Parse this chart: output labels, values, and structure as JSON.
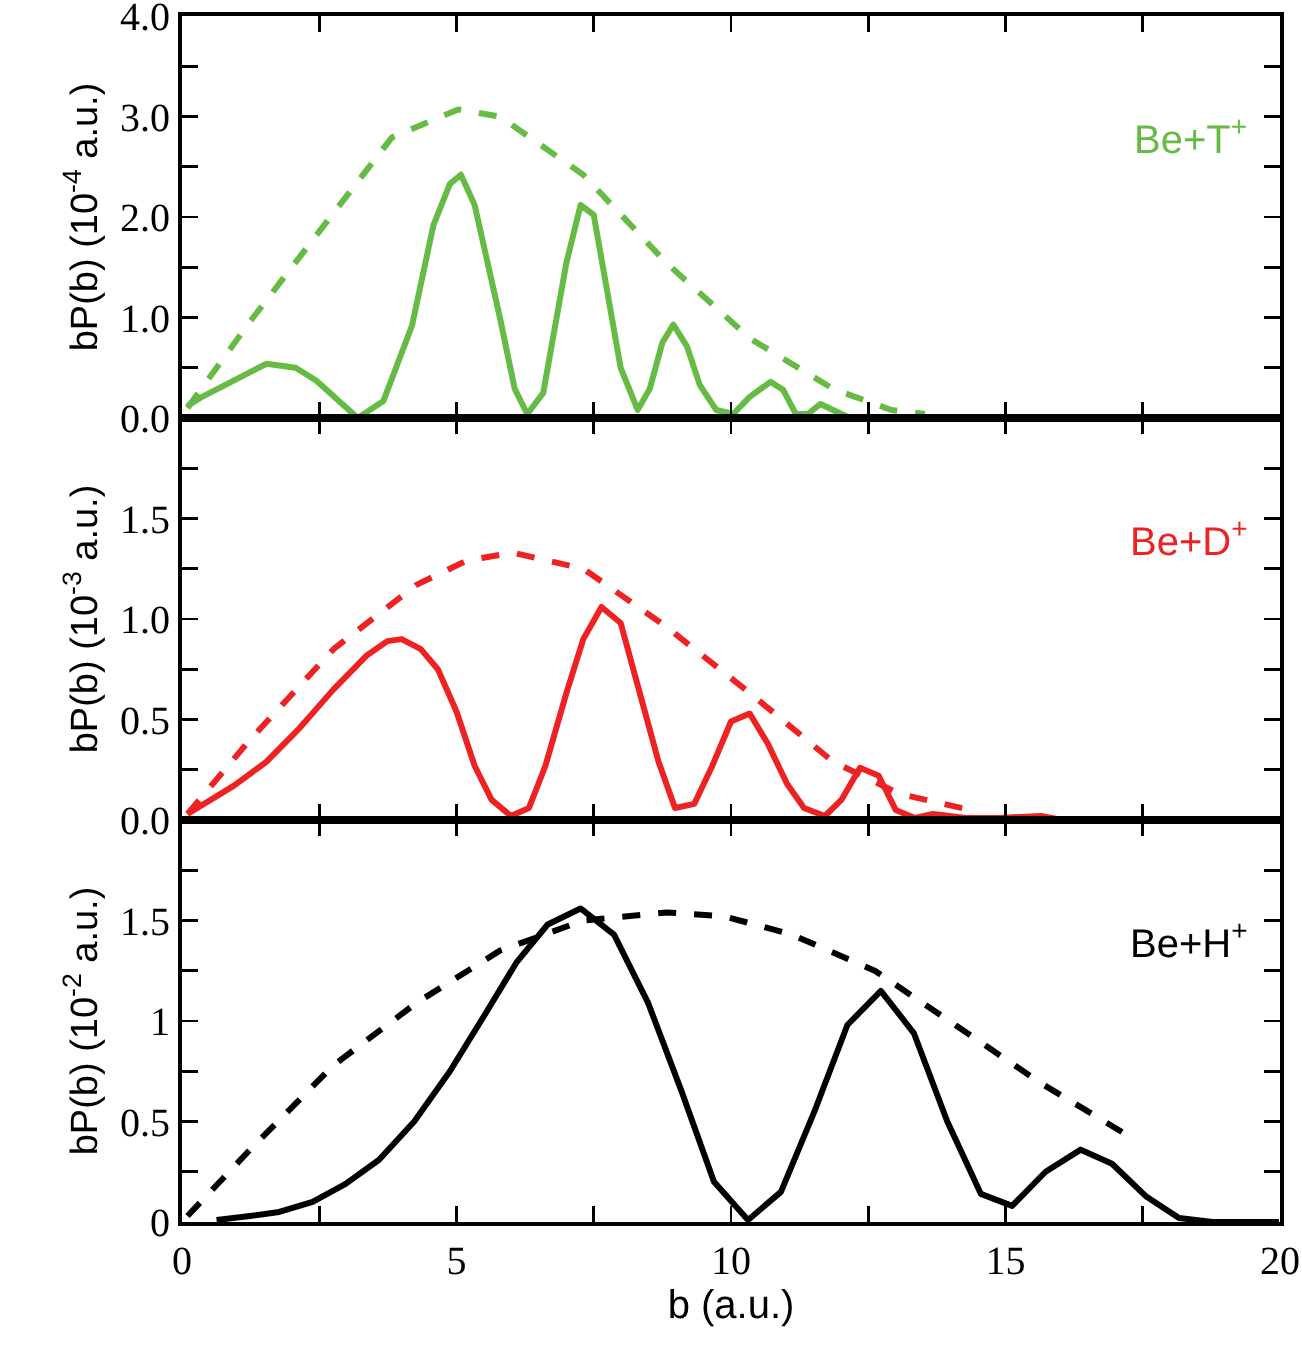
{
  "chart_data": [
    {
      "type": "line",
      "ylabel": "bP(b) (10$^{-4}$ a.u.)",
      "annotations": [
        "Be+T$^{+}$"
      ],
      "xlim": [
        0,
        20
      ],
      "xticks": [
        0,
        {
          "value": 2.5,
          "label": null
        },
        5,
        {
          "value": 7.5,
          "label": null
        },
        10,
        {
          "value": 12.5,
          "label": null
        },
        15,
        {
          "value": 17.5,
          "label": null
        },
        20
      ],
      "ylim": [
        0,
        4
      ],
      "yticks": [
        {
          "value": 0,
          "label": "0.0"
        },
        {
          "value": 0.5,
          "label": null
        },
        {
          "value": 1,
          "label": "1.0"
        },
        {
          "value": 1.5,
          "label": null
        },
        {
          "value": 2,
          "label": "2.0"
        },
        {
          "value": 2.5,
          "label": null
        },
        {
          "value": 3,
          "label": "3.0"
        },
        {
          "value": 3.5,
          "label": null
        },
        {
          "value": 4,
          "label": "4.0"
        }
      ],
      "tick_labels": "y",
      "grid": false,
      "marker": "none",
      "series": [
        {
          "color": "#66bb44",
          "line_style": "solid",
          "x": [
            0.1,
            0.33,
            1.54,
            2.07,
            2.45,
            3.2,
            3.67,
            4.19,
            4.58,
            4.88,
            5.08,
            5.33,
            5.79,
            6.06,
            6.29,
            6.58,
            7.0,
            7.26,
            7.5,
            7.99,
            8.3,
            8.52,
            8.75,
            8.95,
            9.2,
            9.43,
            9.73,
            10.04,
            10.34,
            10.72,
            10.95,
            11.18,
            11.4,
            11.63,
            11.86,
            12.17
          ],
          "values": [
            0.12,
            0.2,
            0.54,
            0.5,
            0.37,
            0,
            0.17,
            0.92,
            1.92,
            2.33,
            2.42,
            2.12,
            1.0,
            0.29,
            0.04,
            0.25,
            1.54,
            2.12,
            2.02,
            0.5,
            0.08,
            0.29,
            0.75,
            0.93,
            0.71,
            0.33,
            0.08,
            0.04,
            0.21,
            0.36,
            0.28,
            0.04,
            0.04,
            0.14,
            0.08,
            0.0
          ]
        },
        {
          "color": "#66bb44",
          "line_style": "dashed",
          "x": [
            0.1,
            1.24,
            2.76,
            3.82,
            5.03,
            5.79,
            7.31,
            8.83,
            10.35,
            11.86,
            12.92,
            13.53
          ],
          "values": [
            0.1,
            0.96,
            2.04,
            2.79,
            3.07,
            3.0,
            2.42,
            1.54,
            0.79,
            0.29,
            0.08,
            0.04
          ]
        }
      ]
    },
    {
      "type": "line",
      "ylabel": "bP(b) (10$^{-3}$ a.u.)",
      "annotations": [
        "Be+D$^{+}$"
      ],
      "xlim": [
        0,
        20
      ],
      "xticks": [
        0,
        {
          "value": 2.5,
          "label": null
        },
        5,
        {
          "value": 7.5,
          "label": null
        },
        10,
        {
          "value": 12.5,
          "label": null
        },
        15,
        {
          "value": 17.5,
          "label": null
        },
        20
      ],
      "ylim": [
        0,
        2
      ],
      "yticks": [
        {
          "value": 0,
          "label": "0.0"
        },
        {
          "value": 0.25,
          "label": null
        },
        {
          "value": 0.5,
          "label": "0.5"
        },
        {
          "value": 0.75,
          "label": null
        },
        {
          "value": 1,
          "label": "1.0"
        },
        {
          "value": 1.25,
          "label": null
        },
        {
          "value": 1.5,
          "label": "1.5"
        },
        {
          "value": 1.75,
          "label": null
        }
      ],
      "tick_labels": "y",
      "grid": false,
      "marker": "none",
      "series": [
        {
          "color": "#ee2222",
          "line_style": "solid",
          "x": [
            0.1,
            0.94,
            1.54,
            2.15,
            2.76,
            3.37,
            3.74,
            4.0,
            4.35,
            4.66,
            5.0,
            5.33,
            5.64,
            5.99,
            6.32,
            6.62,
            7.0,
            7.31,
            7.64,
            7.99,
            8.37,
            8.68,
            8.98,
            9.33,
            9.66,
            10.0,
            10.34,
            10.67,
            11.02,
            11.33,
            11.71,
            12.01,
            12.35,
            12.69,
            13.0,
            13.35,
            13.68,
            14.28,
            14.89,
            15.65,
            16.03,
            16.94
          ],
          "values": [
            0.03,
            0.17,
            0.29,
            0.46,
            0.65,
            0.82,
            0.89,
            0.9,
            0.85,
            0.75,
            0.54,
            0.27,
            0.1,
            0.02,
            0.06,
            0.27,
            0.63,
            0.9,
            1.06,
            0.98,
            0.6,
            0.29,
            0.06,
            0.08,
            0.27,
            0.49,
            0.53,
            0.38,
            0.18,
            0.06,
            0.02,
            0.1,
            0.26,
            0.22,
            0.05,
            0.01,
            0.03,
            0.01,
            0.01,
            0.02,
            0,
            0
          ]
        },
        {
          "color": "#ee2222",
          "line_style": "dashed",
          "x": [
            0.1,
            1.24,
            2.76,
            4.27,
            5.18,
            6.02,
            7.31,
            8.83,
            10.35,
            11.86,
            13.07,
            14.36
          ],
          "values": [
            0.03,
            0.4,
            0.85,
            1.17,
            1.29,
            1.33,
            1.25,
            0.96,
            0.63,
            0.29,
            0.13,
            0.05
          ]
        }
      ]
    },
    {
      "type": "line",
      "xlabel": "b (a.u.)",
      "ylabel": "bP(b) (10$^{-2}$ a.u.)",
      "annotations": [
        "Be+H$^{+}$"
      ],
      "xlim": [
        0,
        20
      ],
      "xticks": [
        0,
        {
          "value": 2.5,
          "label": null
        },
        5,
        {
          "value": 7.5,
          "label": null
        },
        10,
        {
          "value": 12.5,
          "label": null
        },
        15,
        {
          "value": 17.5,
          "label": null
        },
        20
      ],
      "ylim": [
        0,
        2
      ],
      "yticks": [
        0,
        {
          "value": 0.25,
          "label": null
        },
        0.5,
        {
          "value": 0.75,
          "label": null
        },
        1,
        {
          "value": 1.25,
          "label": null
        },
        1.5,
        {
          "value": 1.75,
          "label": null
        }
      ],
      "grid": false,
      "marker": "none",
      "series": [
        {
          "color": "#000000",
          "line_style": "solid",
          "x": [
            0.63,
            1.24,
            1.77,
            2.38,
            2.98,
            3.59,
            4.23,
            4.88,
            5.49,
            6.09,
            6.66,
            7.26,
            7.87,
            8.49,
            9.1,
            9.69,
            10.31,
            10.91,
            11.52,
            12.12,
            12.73,
            13.33,
            13.94,
            14.55,
            15.12,
            15.73,
            16.37,
            16.94,
            17.55,
            18.16,
            18.77,
            19.98
          ],
          "values": [
            0.01,
            0.03,
            0.05,
            0.1,
            0.19,
            0.31,
            0.5,
            0.75,
            1.02,
            1.29,
            1.48,
            1.56,
            1.43,
            1.09,
            0.65,
            0.2,
            0.01,
            0.15,
            0.55,
            0.98,
            1.15,
            0.94,
            0.5,
            0.14,
            0.08,
            0.25,
            0.36,
            0.29,
            0.13,
            0.02,
            0,
            0
          ]
        },
        {
          "color": "#000000",
          "line_style": "dashed",
          "x": [
            0.1,
            1.24,
            2.76,
            4.27,
            5.79,
            7.31,
            8.83,
            9.89,
            11.11,
            12.62,
            14.14,
            15.65,
            17.17
          ],
          "values": [
            0.03,
            0.36,
            0.78,
            1.09,
            1.35,
            1.5,
            1.54,
            1.52,
            1.43,
            1.25,
            0.97,
            0.69,
            0.44
          ]
        }
      ]
    }
  ]
}
